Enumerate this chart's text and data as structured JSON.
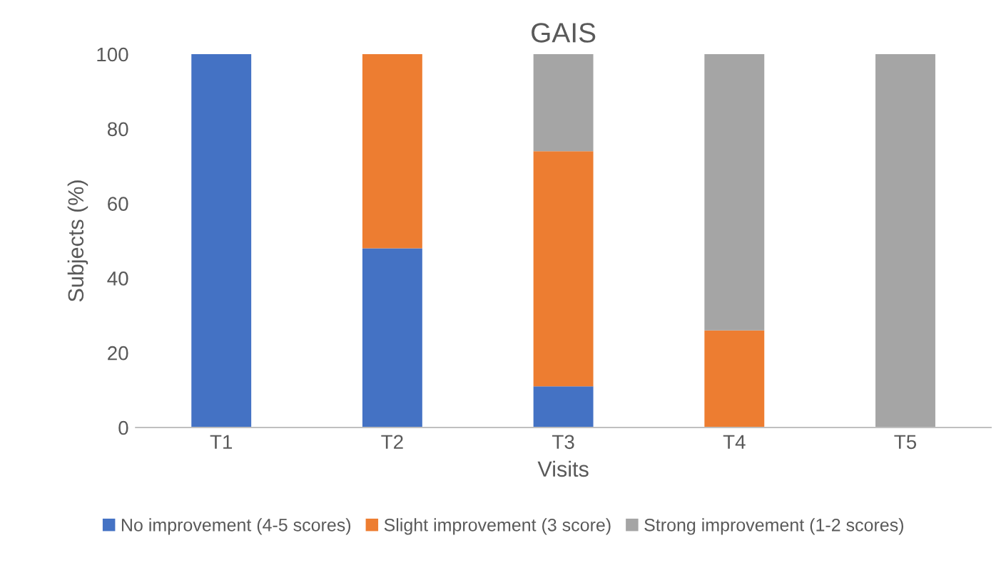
{
  "chart_data": {
    "type": "bar",
    "title": "GAIS",
    "xlabel": "Visits",
    "ylabel": "Subjects (%)",
    "categories": [
      "T1",
      "T2",
      "T3",
      "T4",
      "T5"
    ],
    "stacked": true,
    "series": [
      {
        "name": "No improvement (4-5 scores)",
        "color": "#4472c4",
        "values": [
          100,
          48,
          11,
          0,
          0
        ]
      },
      {
        "name": "Slight improvement (3 score)",
        "color": "#ed7d31",
        "values": [
          0,
          52,
          63,
          26,
          0
        ]
      },
      {
        "name": "Strong improvement (1-2 scores)",
        "color": "#a5a5a5",
        "values": [
          0,
          0,
          26,
          74,
          100
        ]
      }
    ],
    "ylim": [
      0,
      100
    ],
    "yticks": [
      0,
      20,
      40,
      60,
      80,
      100
    ],
    "grid": false,
    "legend": "bottom"
  }
}
